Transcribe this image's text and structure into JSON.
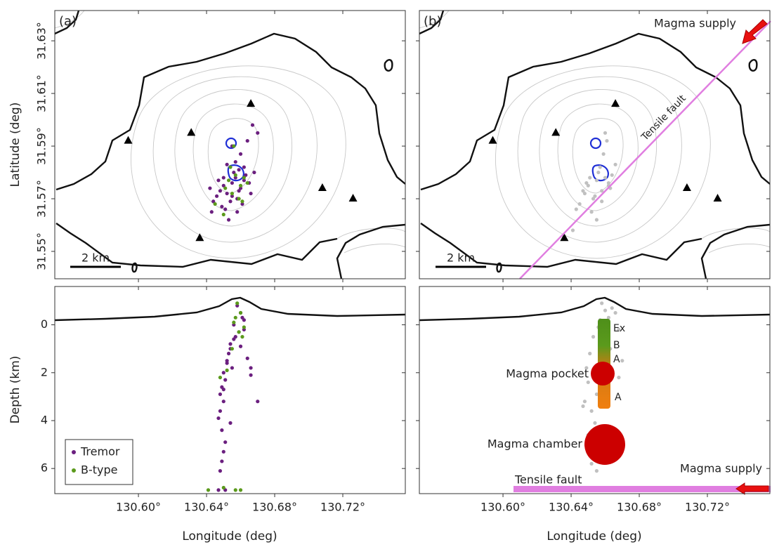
{
  "chart_data": [
    {
      "type": "scatter",
      "panel_label": "(a)",
      "ylabel": "Latitude (deg)",
      "scale_bar": "2 km",
      "xlim": [
        130.5509,
        130.7567
      ],
      "ylim": [
        31.5396,
        31.6415
      ],
      "yticks": [
        {
          "value": 31.55,
          "label": "31.55°"
        },
        {
          "value": 31.57,
          "label": "31.57°"
        },
        {
          "value": 31.59,
          "label": "31.59°"
        },
        {
          "value": 31.61,
          "label": "31.61°"
        },
        {
          "value": 31.63,
          "label": "31.63°"
        }
      ],
      "series": [
        {
          "color": "#6b1f7f",
          "x": [
            130.65,
            130.652,
            130.655,
            130.657,
            130.66,
            130.662,
            130.658,
            130.654,
            130.648,
            130.646,
            130.651,
            130.656,
            130.659,
            130.663,
            130.665,
            130.661,
            130.653,
            130.649,
            130.644,
            130.642,
            130.657,
            130.66,
            130.664,
            130.667,
            130.655,
            130.652,
            130.658,
            130.65,
            130.666,
            130.662,
            130.647,
            130.655,
            130.668,
            130.67,
            130.659,
            130.643
          ],
          "y": [
            31.575,
            31.572,
            31.576,
            31.578,
            31.574,
            31.577,
            31.57,
            31.569,
            31.573,
            31.571,
            31.566,
            31.58,
            31.581,
            31.579,
            31.576,
            31.568,
            31.562,
            31.567,
            31.569,
            31.574,
            31.584,
            31.587,
            31.592,
            31.598,
            31.59,
            31.583,
            31.565,
            31.578,
            31.572,
            31.582,
            31.577,
            31.571,
            31.58,
            31.595,
            31.573,
            31.565
          ]
        },
        {
          "color": "#5b9a1c",
          "x": [
            130.653,
            130.657,
            130.66,
            130.662,
            130.655,
            130.659,
            130.651,
            130.664,
            130.65,
            130.656,
            130.645,
            130.654,
            130.661
          ],
          "y": [
            31.577,
            31.579,
            31.575,
            31.578,
            31.572,
            31.57,
            31.574,
            31.576,
            31.564,
            31.59,
            31.568,
            31.582,
            31.569
          ]
        }
      ],
      "stations": {
        "color": "#000000",
        "x": [
          130.594,
          130.631,
          130.666,
          130.708,
          130.726,
          130.636
        ],
        "y": [
          31.592,
          31.595,
          31.606,
          31.574,
          31.57,
          31.555
        ]
      }
    },
    {
      "type": "scatter",
      "ylabel": "Depth (km)",
      "xlabel": "Longitude (deg)",
      "y_inverted": true,
      "legend": "lower left",
      "xlim": [
        130.5509,
        130.7567
      ],
      "ylim": [
        -1.6,
        7.05
      ],
      "xticks": [
        {
          "value": 130.6,
          "label": "130.60°"
        },
        {
          "value": 130.64,
          "label": "130.64°"
        },
        {
          "value": 130.68,
          "label": "130.68°"
        },
        {
          "value": 130.72,
          "label": "130.72°"
        }
      ],
      "yticks": [
        0,
        2,
        4,
        6
      ],
      "series": [
        {
          "name": "Tremor",
          "color": "#6b1f7f",
          "x": [
            130.658,
            130.66,
            130.662,
            130.656,
            130.659,
            130.661,
            130.657,
            130.654,
            130.653,
            130.652,
            130.655,
            130.65,
            130.651,
            130.649,
            130.648,
            130.652,
            130.654,
            130.656,
            130.65,
            130.648,
            130.647,
            130.649,
            130.651,
            130.662,
            130.66,
            130.664,
            130.666,
            130.65,
            130.649,
            130.648,
            130.651,
            130.647,
            130.65,
            130.67,
            130.654,
            130.666
          ],
          "y": [
            -0.8,
            -0.5,
            -0.2,
            0.0,
            0.3,
            -0.3,
            0.5,
            0.8,
            1.2,
            1.6,
            1.8,
            2.0,
            2.3,
            2.6,
            2.9,
            1.5,
            1.0,
            0.6,
            3.2,
            3.6,
            3.9,
            4.4,
            4.9,
            0.2,
            0.9,
            1.4,
            2.1,
            5.3,
            5.7,
            6.1,
            6.9,
            6.9,
            2.7,
            3.2,
            4.1,
            1.8
          ]
        },
        {
          "name": "B-type",
          "color": "#5b9a1c",
          "x": [
            130.658,
            130.66,
            130.656,
            130.662,
            130.659,
            130.657,
            130.661,
            130.655,
            130.652,
            130.648,
            130.65,
            130.657,
            130.66,
            130.641
          ],
          "y": [
            -0.9,
            -0.5,
            -0.1,
            0.1,
            0.3,
            -0.3,
            0.5,
            1.0,
            1.9,
            2.2,
            6.8,
            6.9,
            6.9,
            6.9
          ]
        }
      ]
    },
    {
      "type": "scatter",
      "panel_label": "(b)",
      "scale_bar": "2 km",
      "xlim": [
        130.5509,
        130.7567
      ],
      "ylim": [
        31.5396,
        31.6415
      ],
      "series": [
        {
          "color": "#c0c0c0",
          "x": [
            130.65,
            130.655,
            130.658,
            130.66,
            130.662,
            130.653,
            130.648,
            130.645,
            130.657,
            130.664,
            130.652,
            130.659,
            130.661,
            130.656,
            130.649,
            130.643,
            130.666,
            130.654,
            130.658,
            130.651,
            130.647,
            130.662,
            130.66,
            130.655,
            130.641,
            130.663
          ],
          "y": [
            31.575,
            31.577,
            31.573,
            31.578,
            31.575,
            31.57,
            31.572,
            31.568,
            31.582,
            31.579,
            31.565,
            31.587,
            31.592,
            31.58,
            31.576,
            31.566,
            31.583,
            31.571,
            31.569,
            31.578,
            31.573,
            31.576,
            31.595,
            31.562,
            31.558,
            31.574
          ]
        }
      ],
      "stations": {
        "color": "#000000",
        "x": [
          130.594,
          130.631,
          130.666,
          130.708,
          130.726,
          130.636
        ],
        "y": [
          31.592,
          31.595,
          31.606,
          31.574,
          31.57,
          31.555
        ]
      },
      "annotations": [
        "Magma supply",
        "Tensile fault"
      ]
    },
    {
      "type": "scatter",
      "xlabel": "Longitude (deg)",
      "y_inverted": true,
      "xlim": [
        130.5509,
        130.7567
      ],
      "ylim": [
        -1.6,
        7.05
      ],
      "xticks": [
        {
          "value": 130.6,
          "label": "130.60°"
        },
        {
          "value": 130.64,
          "label": "130.64°"
        },
        {
          "value": 130.68,
          "label": "130.68°"
        },
        {
          "value": 130.72,
          "label": "130.72°"
        }
      ],
      "series": [
        {
          "color": "#c0c0c0",
          "x": [
            130.658,
            130.66,
            130.662,
            130.656,
            130.664,
            130.653,
            130.651,
            130.649,
            130.65,
            130.655,
            130.648,
            130.652,
            130.666,
            130.668,
            130.654,
            130.657,
            130.663,
            130.65,
            130.647,
            130.651,
            130.668,
            130.652,
            130.655,
            130.67
          ],
          "y": [
            -0.9,
            -0.6,
            -0.3,
            0.1,
            -0.7,
            0.5,
            1.2,
            1.8,
            2.4,
            2.9,
            3.2,
            3.6,
            -0.5,
            0.2,
            4.1,
            -0.2,
            1.0,
            4.6,
            3.4,
            5.2,
            2.2,
            5.8,
            6.1,
            1.5
          ]
        }
      ],
      "annotations": [
        "Ex",
        "B",
        "A",
        "A",
        "Magma pocket",
        "Magma chamber",
        "Magma supply",
        "Tensile fault"
      ]
    }
  ]
}
